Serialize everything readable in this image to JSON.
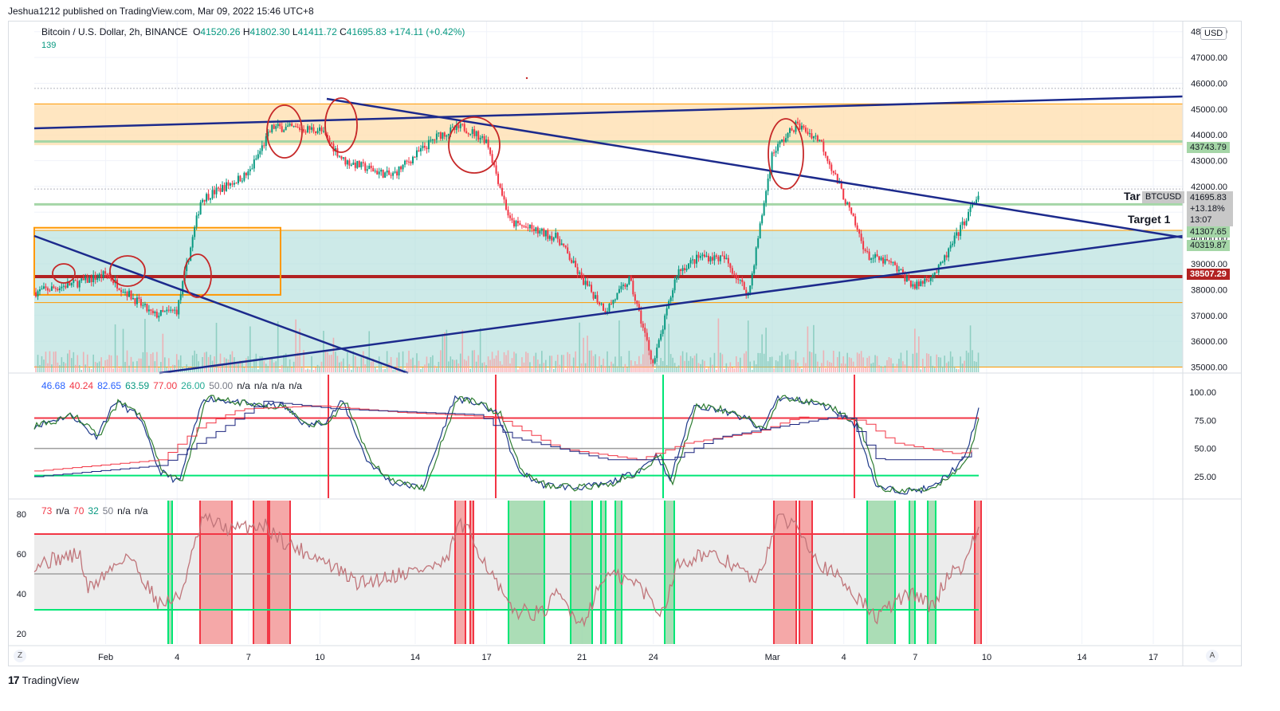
{
  "header": {
    "published": "Jeshua1212 published on TradingView.com, Mar 09, 2022 15:46 UTC+8"
  },
  "legend": {
    "symbol": "Bitcoin / U.S. Dollar, 2h, BINANCE",
    "o_label": "O",
    "o": "41520.26",
    "h_label": "H",
    "h": "41802.30",
    "l_label": "L",
    "l": "41411.72",
    "c_label": "C",
    "c": "41695.83",
    "change": "+174.11 (+0.42%)",
    "volume": "139"
  },
  "currency_button": "USD",
  "price_axis": [
    "48000.00",
    "47000.00",
    "46000.00",
    "45000.00",
    "44000.00",
    "43000.00",
    "42000.00",
    "41000.00",
    "40000.00",
    "39000.00",
    "38000.00",
    "37000.00",
    "36000.00",
    "35000.00"
  ],
  "price_tags": {
    "t43743": "43743.79",
    "symbol": "BTCUSD",
    "last": "41695.83",
    "pct": "+13.18%",
    "countdown": "13:07",
    "t41307": "41307.65",
    "t40319": "40319.87",
    "t38507": "38507.29"
  },
  "annotations": {
    "target1": "Target 1",
    "target2_partial": "Tar"
  },
  "ind1": {
    "values": [
      "46.68",
      "40.24",
      "82.65",
      "63.59",
      "77.00",
      "26.00",
      "50.00",
      "n/a",
      "n/a",
      "n/a",
      "n/a"
    ],
    "colors": [
      "#2962ff",
      "#f23645",
      "#2962ff",
      "#089981",
      "#f23645",
      "#22ab94",
      "#787b86",
      "#131722",
      "#131722",
      "#131722",
      "#131722"
    ],
    "axis": [
      "100.00",
      "75.00",
      "50.00",
      "25.00"
    ]
  },
  "ind2": {
    "values": [
      "73",
      "n/a",
      "70",
      "32",
      "50",
      "n/a",
      "n/a"
    ],
    "colors": [
      "#f23645",
      "#131722",
      "#f23645",
      "#089981",
      "#787b86",
      "#131722",
      "#131722"
    ],
    "axis": [
      "80",
      "60",
      "40",
      "20"
    ]
  },
  "time_axis": [
    "Feb",
    "4",
    "7",
    "10",
    "14",
    "17",
    "21",
    "24",
    "Mar",
    "4",
    "7",
    "10",
    "14",
    "17"
  ],
  "buttons": {
    "z": "Z",
    "a": "A"
  },
  "footer": {
    "logo_glyph": "17",
    "brand": "TradingView"
  },
  "colors": {
    "up": "#089981",
    "down": "#f23645",
    "trendline": "#1c2a8c",
    "support": "#b22222",
    "orange_zone": "#ffe0b2",
    "teal_zone": "#b2dfdb"
  },
  "chart_data": {
    "type": "candlestick",
    "title": "Bitcoin / U.S. Dollar, 2h, BINANCE",
    "ylim": [
      34800,
      48300
    ],
    "key_levels": [
      {
        "label": "43743.79",
        "value": 43743.79
      },
      {
        "label": "41307.65",
        "value": 41307.65
      },
      {
        "label": "40319.87",
        "value": 40319.87
      },
      {
        "label": "38507.29",
        "value": 38507.29
      }
    ],
    "close_path": [
      {
        "x": "Jan 29",
        "y": 37900
      },
      {
        "x": "Jan 31",
        "y": 38300
      },
      {
        "x": "Feb 1",
        "y": 38600
      },
      {
        "x": "Feb 3",
        "y": 37000
      },
      {
        "x": "Feb 4",
        "y": 37200
      },
      {
        "x": "Feb 5",
        "y": 41500
      },
      {
        "x": "Feb 7",
        "y": 42500
      },
      {
        "x": "Feb 8",
        "y": 44300
      },
      {
        "x": "Feb 10",
        "y": 44200
      },
      {
        "x": "Feb 11",
        "y": 43000
      },
      {
        "x": "Feb 13",
        "y": 42400
      },
      {
        "x": "Feb 15",
        "y": 44000
      },
      {
        "x": "Feb 16",
        "y": 44300
      },
      {
        "x": "Feb 17",
        "y": 43800
      },
      {
        "x": "Feb 18",
        "y": 40600
      },
      {
        "x": "Feb 20",
        "y": 40000
      },
      {
        "x": "Feb 21",
        "y": 38400
      },
      {
        "x": "Feb 22",
        "y": 37200
      },
      {
        "x": "Feb 23",
        "y": 38400
      },
      {
        "x": "Feb 24",
        "y": 35100
      },
      {
        "x": "Feb 25",
        "y": 38700
      },
      {
        "x": "Feb 26",
        "y": 39300
      },
      {
        "x": "Feb 27",
        "y": 39200
      },
      {
        "x": "Feb 28",
        "y": 37800
      },
      {
        "x": "Mar 1",
        "y": 43300
      },
      {
        "x": "Mar 2",
        "y": 44400
      },
      {
        "x": "Mar 3",
        "y": 43800
      },
      {
        "x": "Mar 4",
        "y": 41600
      },
      {
        "x": "Mar 5",
        "y": 39300
      },
      {
        "x": "Mar 6",
        "y": 39000
      },
      {
        "x": "Mar 7",
        "y": 38100
      },
      {
        "x": "Mar 8",
        "y": 38800
      },
      {
        "x": "Mar 9",
        "y": 41695.83
      }
    ],
    "ind1_lines": [
      {
        "name": "46.68",
        "last": 46.68
      },
      {
        "name": "40.24",
        "last": 40.24
      },
      {
        "name": "82.65",
        "last": 82.65
      },
      {
        "name": "63.59",
        "last": 63.59
      }
    ],
    "ind1_levels": [
      77,
      26,
      50
    ],
    "ind2_value": 73,
    "ind2_levels": [
      70,
      32,
      50
    ]
  }
}
